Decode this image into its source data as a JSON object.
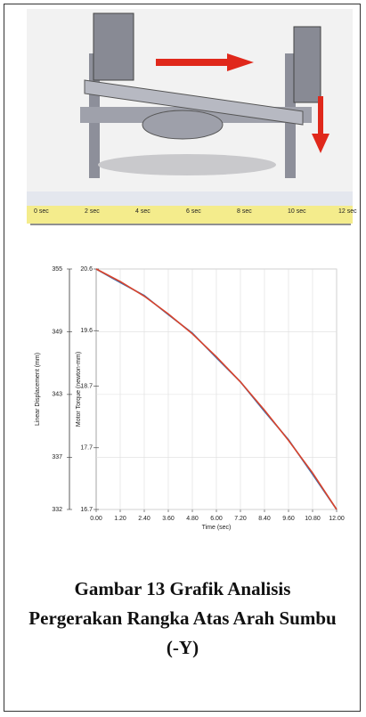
{
  "cad_image": {
    "timeline_labels": [
      "0 sec",
      "2 sec",
      "4 sec",
      "6 sec",
      "8 sec",
      "10 sec",
      "12 sec"
    ]
  },
  "chart_data": {
    "type": "line",
    "ylabel": "Linear Displacement  (mm)",
    "y2label": "Motor Torque  (newton-mm)",
    "xlabel": "Time (sec)",
    "x": [
      0,
      1.2,
      2.4,
      3.6,
      4.8,
      6,
      7.2,
      8.4,
      9.6,
      10.8,
      12
    ],
    "series": [
      {
        "color": "#3a6fb0",
        "axis": "y2",
        "values": [
          20.6,
          20.38,
          20.17,
          19.86,
          19.56,
          19.16,
          18.77,
          18.29,
          17.83,
          17.27,
          16.7
        ]
      },
      {
        "color": "#d9432b",
        "values": [
          355,
          353.8,
          352.4,
          350.7,
          348.8,
          346.6,
          344.2,
          341.5,
          338.6,
          335.5,
          332
        ]
      }
    ],
    "xlim": [
      0,
      12
    ],
    "xticks": [
      {
        "value": 0,
        "label": "0.00"
      },
      {
        "value": 1.2,
        "label": "1.20"
      },
      {
        "value": 2.4,
        "label": "2.40"
      },
      {
        "value": 3.6,
        "label": "3.60"
      },
      {
        "value": 4.8,
        "label": "4.80"
      },
      {
        "value": 6,
        "label": "6.00"
      },
      {
        "value": 7.2,
        "label": "7.20"
      },
      {
        "value": 8.4,
        "label": "8.40"
      },
      {
        "value": 9.6,
        "label": "9.60"
      },
      {
        "value": 10.8,
        "label": "10.80"
      },
      {
        "value": 12,
        "label": "12.00"
      }
    ],
    "ylim": [
      332,
      355
    ],
    "yticks": [
      355,
      349,
      343,
      337,
      332
    ],
    "y2lim": [
      16.7,
      20.6
    ],
    "y2ticks": [
      20.6,
      19.6,
      18.7,
      17.7,
      16.7
    ],
    "grid": true
  },
  "caption": "Gambar 13 Grafik Analisis Pergerakan Rangka Atas Arah Sumbu (-Y)"
}
